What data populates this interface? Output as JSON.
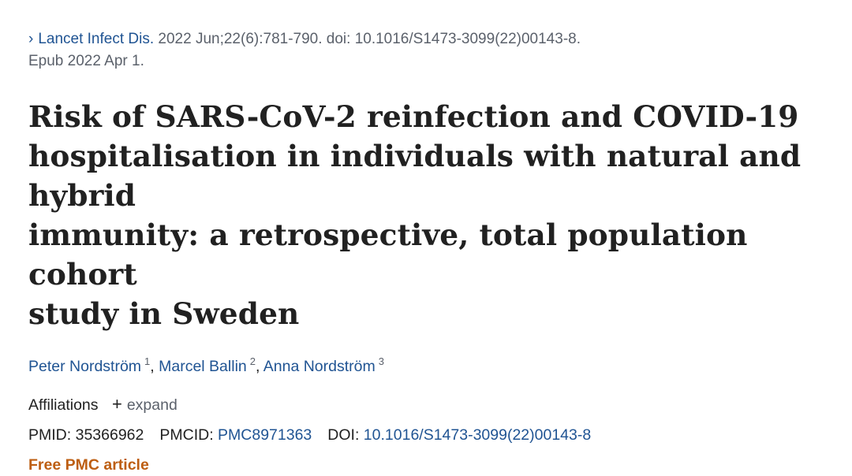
{
  "citation": {
    "chevron": "›",
    "journal": "Lancet Infect Dis.",
    "details": "2022 Jun;22(6):781-790. doi: 10.1016/S1473-3099(22)00143-8.",
    "epub": "Epub 2022 Apr 1."
  },
  "title": {
    "line1": "Risk of SARS-CoV-2 reinfection and COVID-19",
    "line2": "hospitalisation in individuals with natural and hybrid",
    "line3": "immunity: a retrospective, total population cohort",
    "line4": "study in Sweden"
  },
  "authors": [
    {
      "name": "Peter Nordström",
      "sup": "1"
    },
    {
      "name": "Marcel Ballin",
      "sup": "2"
    },
    {
      "name": "Anna Nordström",
      "sup": "3"
    }
  ],
  "affiliations": {
    "label": "Affiliations",
    "plus": "+",
    "expand": "expand"
  },
  "ids": {
    "pmid_label": "PMID:",
    "pmid": "35366962",
    "pmcid_label": "PMCID:",
    "pmcid": "PMC8971363",
    "doi_label": "DOI:",
    "doi": "10.1016/S1473-3099(22)00143-8"
  },
  "free_label": "Free PMC article",
  "colors": {
    "link": "#205493",
    "muted": "#5b616b",
    "free": "#bd5e12"
  }
}
